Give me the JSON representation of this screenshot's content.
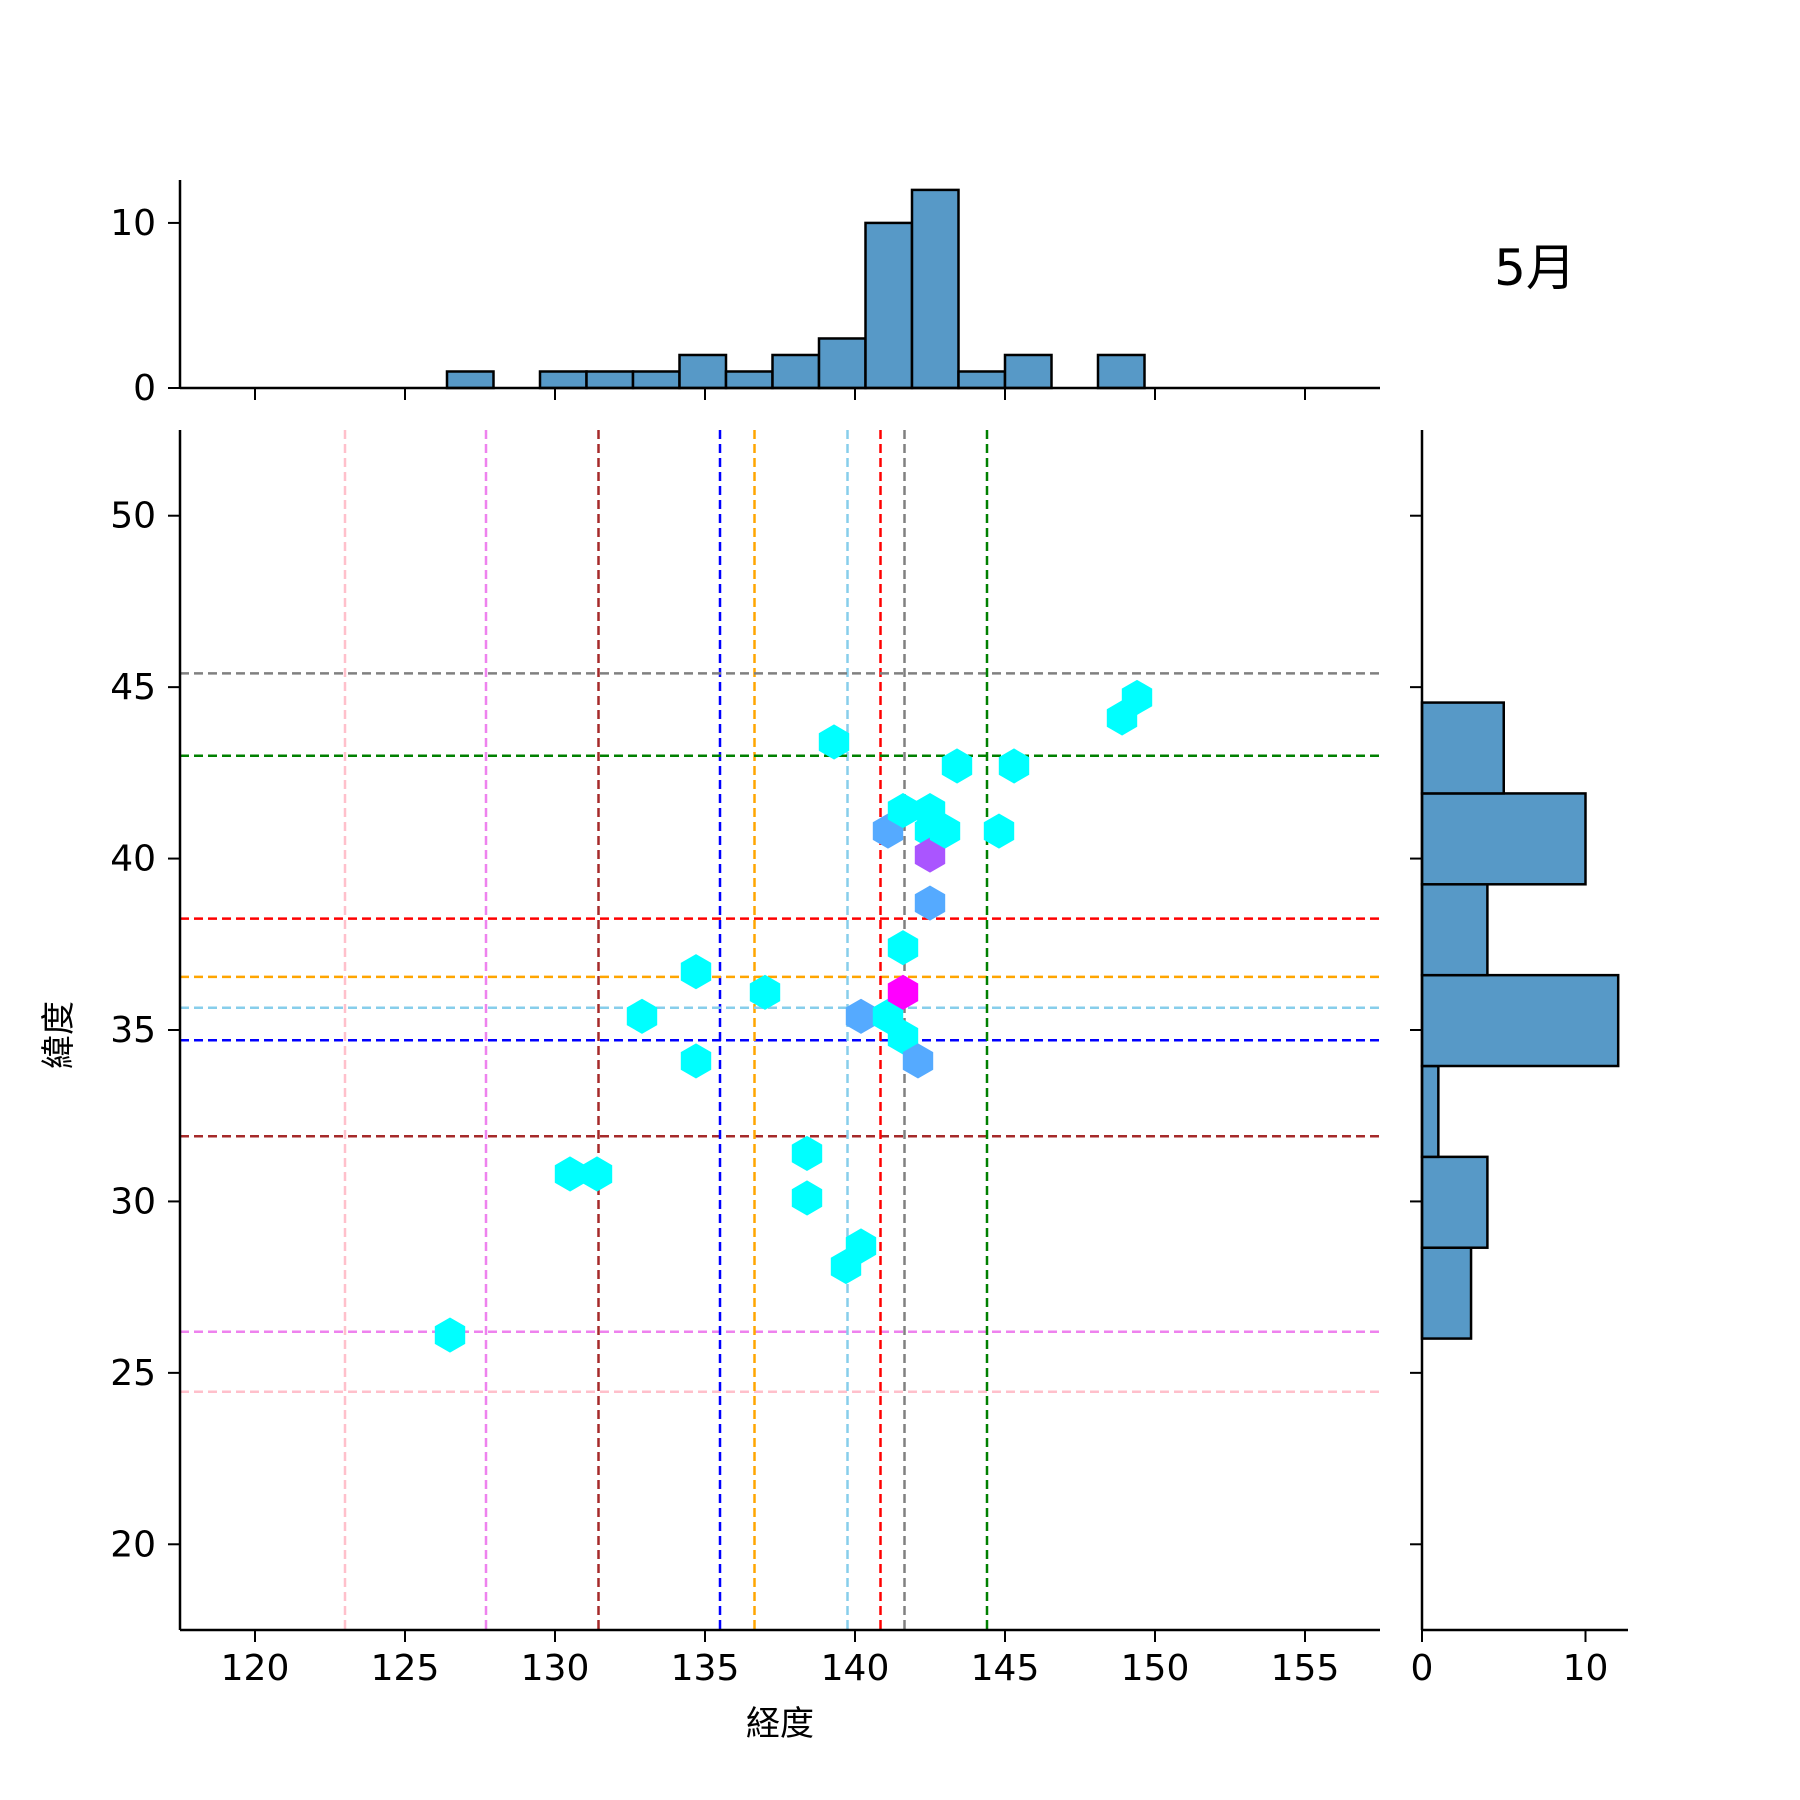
{
  "chart_data": {
    "type": "hexbin-jointplot",
    "annotation": "5月",
    "xlabel": "経度",
    "ylabel": "緯度",
    "xlim": [
      117.5,
      157.5
    ],
    "ylim": [
      17.5,
      52.5
    ],
    "x_ticks": [
      120,
      125,
      130,
      135,
      140,
      145,
      150,
      155
    ],
    "y_ticks": [
      20,
      25,
      30,
      35,
      40,
      45,
      50
    ],
    "reference_lines": [
      {
        "color": "#ffc0cb",
        "x": 123.0,
        "y": 24.45
      },
      {
        "color": "#ee82ee",
        "x": 127.7,
        "y": 26.2
      },
      {
        "color": "#a52a2a",
        "x": 131.45,
        "y": 31.9
      },
      {
        "color": "#0000ff",
        "x": 135.5,
        "y": 34.7
      },
      {
        "color": "#ffa500",
        "x": 136.65,
        "y": 36.55
      },
      {
        "color": "#87ceeb",
        "x": 139.75,
        "y": 35.65
      },
      {
        "color": "#ff0000",
        "x": 140.85,
        "y": 38.25
      },
      {
        "color": "#808080",
        "x": 141.65,
        "y": 45.4
      },
      {
        "color": "#008000",
        "x": 144.4,
        "y": 43.0
      }
    ],
    "hexbins": [
      {
        "x": 126.5,
        "y": 26.1,
        "count": 1
      },
      {
        "x": 130.5,
        "y": 30.8,
        "count": 1
      },
      {
        "x": 131.4,
        "y": 30.8,
        "count": 1
      },
      {
        "x": 132.9,
        "y": 35.4,
        "count": 1
      },
      {
        "x": 134.7,
        "y": 36.7,
        "count": 1
      },
      {
        "x": 134.7,
        "y": 34.1,
        "count": 1
      },
      {
        "x": 137.0,
        "y": 36.1,
        "count": 1
      },
      {
        "x": 138.4,
        "y": 31.4,
        "count": 1
      },
      {
        "x": 138.4,
        "y": 30.1,
        "count": 1
      },
      {
        "x": 139.3,
        "y": 43.4,
        "count": 1
      },
      {
        "x": 139.7,
        "y": 28.1,
        "count": 1
      },
      {
        "x": 140.2,
        "y": 28.7,
        "count": 1
      },
      {
        "x": 140.2,
        "y": 35.4,
        "count": 2
      },
      {
        "x": 141.1,
        "y": 40.8,
        "count": 2
      },
      {
        "x": 141.1,
        "y": 35.4,
        "count": 1
      },
      {
        "x": 141.6,
        "y": 41.4,
        "count": 1
      },
      {
        "x": 141.6,
        "y": 37.4,
        "count": 1
      },
      {
        "x": 141.6,
        "y": 36.1,
        "count": 4
      },
      {
        "x": 141.6,
        "y": 34.8,
        "count": 1
      },
      {
        "x": 142.1,
        "y": 34.1,
        "count": 2
      },
      {
        "x": 142.5,
        "y": 41.4,
        "count": 1
      },
      {
        "x": 142.5,
        "y": 40.8,
        "count": 1
      },
      {
        "x": 142.5,
        "y": 40.1,
        "count": 3
      },
      {
        "x": 142.5,
        "y": 38.7,
        "count": 2
      },
      {
        "x": 143.0,
        "y": 40.8,
        "count": 1
      },
      {
        "x": 143.4,
        "y": 42.7,
        "count": 1
      },
      {
        "x": 144.8,
        "y": 40.8,
        "count": 1
      },
      {
        "x": 145.3,
        "y": 42.7,
        "count": 1
      },
      {
        "x": 148.9,
        "y": 44.1,
        "count": 1
      },
      {
        "x": 149.4,
        "y": 44.7,
        "count": 1
      }
    ],
    "x_histogram": {
      "bin_edges": [
        126.4,
        127.95,
        129.5,
        131.05,
        132.6,
        134.15,
        135.7,
        137.25,
        138.8,
        140.35,
        141.9,
        143.45,
        145.0,
        146.55,
        148.1,
        149.65
      ],
      "counts": [
        1,
        0,
        1,
        1,
        1,
        2,
        1,
        2,
        3,
        10,
        12,
        1,
        2,
        0,
        2
      ],
      "ylim": [
        0,
        12.6
      ],
      "ticks": [
        0,
        10
      ]
    },
    "y_histogram": {
      "bin_edges": [
        26.0,
        28.65,
        31.3,
        33.95,
        36.6,
        39.25,
        41.9,
        44.55
      ],
      "counts": [
        3,
        4,
        1,
        12,
        4,
        10,
        5
      ],
      "xlim": [
        0,
        12.6
      ],
      "ticks": [
        0,
        10
      ]
    },
    "bar_color": "#5799c7"
  }
}
